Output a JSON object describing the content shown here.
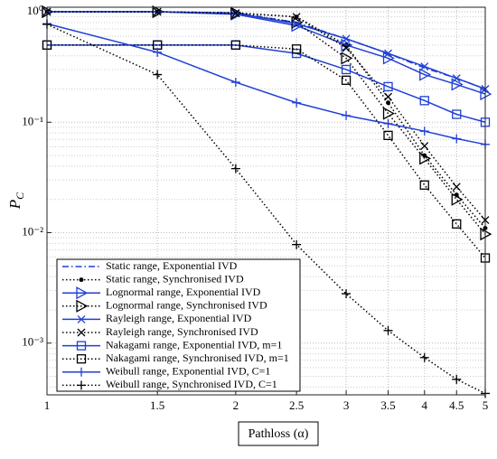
{
  "chart_data": {
    "type": "line",
    "x_label": "Pathloss (α)",
    "y_label": "P",
    "y_label_subscript": "C",
    "log_x": true,
    "log_y": true,
    "grid": true,
    "legend": "lower left",
    "x": [
      1,
      1.5,
      2,
      2.5,
      3,
      3.5,
      4,
      4.5,
      5
    ],
    "xlim": [
      1,
      5
    ],
    "xticks": [
      1,
      1.5,
      2,
      2.5,
      3,
      3.5,
      4,
      4.5,
      5
    ],
    "ylim": [
      0.00034,
      1.1
    ],
    "yticks": [
      {
        "value": 0.001,
        "label": "10⁻³"
      },
      {
        "value": 0.01,
        "label": "10⁻²"
      },
      {
        "value": 0.1,
        "label": "10⁻¹"
      },
      {
        "value": 1,
        "label": "10⁰"
      }
    ],
    "series": [
      {
        "name": "Static range, Exponential IVD",
        "color": "#1f3fd6",
        "dash": "dashdot",
        "marker": "none",
        "values": [
          1,
          1,
          0.98,
          0.8,
          0.57,
          0.42,
          0.31,
          0.25,
          0.2
        ]
      },
      {
        "name": "Static range, Synchronised IVD",
        "color": "#000000",
        "dash": "dotted",
        "marker": "dot",
        "values": [
          1,
          1,
          0.98,
          0.9,
          0.5,
          0.15,
          0.05,
          0.022,
          0.011
        ]
      },
      {
        "name": "Lognormal range, Exponential IVD",
        "color": "#1f3fd6",
        "dash": "solid",
        "marker": "triangle",
        "values": [
          1,
          1,
          0.95,
          0.75,
          0.5,
          0.38,
          0.27,
          0.22,
          0.18
        ]
      },
      {
        "name": "Lognormal range, Synchronised IVD",
        "color": "#000000",
        "dash": "dotted",
        "marker": "triangle",
        "values": [
          1,
          1,
          0.97,
          0.8,
          0.38,
          0.12,
          0.047,
          0.02,
          0.0097
        ]
      },
      {
        "name": "Rayleigh range, Exponential IVD",
        "color": "#1f3fd6",
        "dash": "solid",
        "marker": "x",
        "values": [
          1,
          1,
          0.97,
          0.78,
          0.57,
          0.42,
          0.32,
          0.25,
          0.2
        ]
      },
      {
        "name": "Rayleigh range, Synchronised IVD",
        "color": "#000000",
        "dash": "dotted",
        "marker": "x",
        "values": [
          1,
          1,
          0.97,
          0.9,
          0.47,
          0.17,
          0.061,
          0.026,
          0.013
        ]
      },
      {
        "name": "Nakagami range, Exponential IVD, m=1",
        "color": "#1f3fd6",
        "dash": "solid",
        "marker": "square",
        "values": [
          0.5,
          0.5,
          0.5,
          0.42,
          0.3,
          0.21,
          0.157,
          0.118,
          0.1
        ]
      },
      {
        "name": "Nakagami range, Synchronised IVD, m=1",
        "color": "#000000",
        "dash": "dotted",
        "marker": "square",
        "values": [
          0.5,
          0.5,
          0.5,
          0.46,
          0.24,
          0.076,
          0.027,
          0.012,
          0.0059
        ]
      },
      {
        "name": "Weibull range, Exponential IVD, C=1",
        "color": "#1f3fd6",
        "dash": "solid",
        "marker": "plus",
        "values": [
          0.78,
          0.43,
          0.23,
          0.15,
          0.115,
          0.097,
          0.083,
          0.071,
          0.063
        ]
      },
      {
        "name": "Weibull range, Synchronised IVD, C=1",
        "color": "#000000",
        "dash": "dotted",
        "marker": "plus",
        "values": [
          0.77,
          0.27,
          0.038,
          0.0078,
          0.0028,
          0.0013,
          0.00074,
          0.00047,
          0.00035
        ]
      }
    ]
  }
}
